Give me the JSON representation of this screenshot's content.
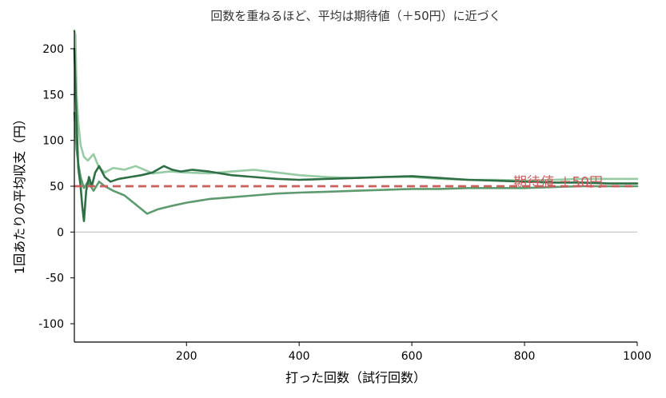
{
  "chart_data": {
    "type": "line",
    "title": "回数を重ねるほど、平均は期待値（＋50円）に近づく",
    "xlabel": "打った回数（試行回数）",
    "ylabel": "1回あたりの平均収支（円）",
    "xlim": [
      1,
      1000
    ],
    "ylim": [
      -120,
      220
    ],
    "xticks": [
      200,
      400,
      600,
      800,
      1000
    ],
    "xtick_labels": [
      "200",
      "400",
      "600",
      "800",
      "1000"
    ],
    "yticks": [
      -100,
      -50,
      0,
      50,
      100,
      150,
      200
    ],
    "ytick_labels": [
      "-100",
      "-50",
      "0",
      "50",
      "100",
      "150",
      "200"
    ],
    "grid": false,
    "zero_line": 0,
    "expected_line": {
      "value": 50,
      "color": "#cd5c5c"
    },
    "annotation": {
      "text": "期待値 ＋50円",
      "color": "#cd5c5c",
      "x": 780,
      "y": 55
    },
    "series": [
      {
        "color": "#97cba4",
        "x": [
          1,
          3,
          5,
          8,
          12,
          18,
          25,
          35,
          45,
          55,
          70,
          90,
          110,
          140,
          170,
          200,
          240,
          280,
          320,
          360,
          400,
          450,
          500,
          550,
          600,
          650,
          700,
          750,
          800,
          850,
          900,
          950,
          1000
        ],
        "y": [
          220,
          215,
          150,
          120,
          95,
          82,
          78,
          85,
          70,
          65,
          70,
          68,
          72,
          64,
          66,
          65,
          64,
          66,
          68,
          65,
          62,
          60,
          59,
          60,
          60,
          58,
          57,
          57,
          56,
          57,
          58,
          58,
          58
        ]
      },
      {
        "color": "#5d9b6e",
        "x": [
          1,
          3,
          5,
          8,
          12,
          18,
          25,
          35,
          45,
          55,
          70,
          90,
          110,
          130,
          150,
          170,
          200,
          240,
          280,
          320,
          360,
          400,
          450,
          500,
          550,
          600,
          650,
          700,
          750,
          800,
          850,
          900,
          950,
          1000
        ],
        "y": [
          130,
          110,
          90,
          75,
          60,
          48,
          55,
          45,
          55,
          50,
          45,
          40,
          30,
          20,
          25,
          28,
          32,
          36,
          38,
          40,
          42,
          43,
          44,
          45,
          46,
          47,
          47,
          48,
          48,
          48,
          49,
          50,
          50,
          50
        ]
      },
      {
        "color": "#2e6f45",
        "x": [
          1,
          3,
          5,
          8,
          12,
          15,
          18,
          22,
          27,
          32,
          38,
          45,
          55,
          65,
          80,
          100,
          120,
          140,
          160,
          175,
          190,
          210,
          240,
          280,
          320,
          360,
          400,
          450,
          500,
          550,
          600,
          650,
          700,
          750,
          800,
          850,
          900,
          950,
          1000
        ],
        "y": [
          200,
          160,
          120,
          70,
          50,
          28,
          12,
          45,
          60,
          50,
          65,
          72,
          60,
          55,
          58,
          60,
          62,
          65,
          72,
          68,
          66,
          68,
          66,
          62,
          60,
          58,
          57,
          58,
          59,
          60,
          61,
          59,
          57,
          56,
          55,
          54,
          54,
          53,
          53
        ]
      }
    ]
  }
}
